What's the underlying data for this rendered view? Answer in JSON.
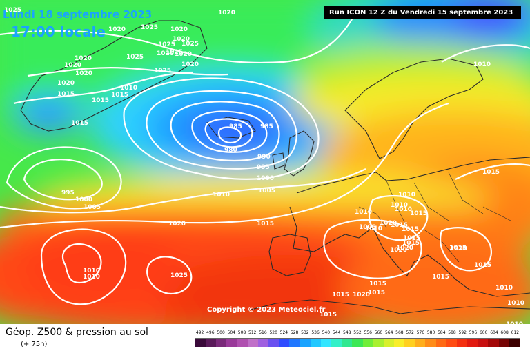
{
  "header": {
    "valid_date": "Lundi 18 septembre 2023",
    "valid_time": "17:00 locale",
    "run_info": "Run ICON 12 Z du Vendredi 15 septembre 2023"
  },
  "footer": {
    "title": "Géop. Z500 & pression au sol",
    "lead": "(+ 75h)",
    "copyright": "Copyright © 2023 Meteociel.fr"
  },
  "scale": {
    "values": [
      "492",
      "496",
      "500",
      "504",
      "508",
      "512",
      "516",
      "520",
      "524",
      "528",
      "532",
      "536",
      "540",
      "544",
      "548",
      "552",
      "556",
      "560",
      "564",
      "568",
      "572",
      "576",
      "580",
      "584",
      "588",
      "592",
      "596",
      "600",
      "604",
      "608",
      "612"
    ],
    "colors": [
      "#3a0a3a",
      "#5a1a5a",
      "#7a2a7a",
      "#9a3a9a",
      "#b050b0",
      "#c070c8",
      "#a060e0",
      "#6a50f0",
      "#2f4cff",
      "#1f77ff",
      "#1aa3ff",
      "#22c8ff",
      "#33e6ff",
      "#33f0c8",
      "#30e890",
      "#3ce855",
      "#70ee3a",
      "#a8f030",
      "#d8f02c",
      "#f8ee2a",
      "#ffd020",
      "#ffae1c",
      "#ff8c18",
      "#ff6a14",
      "#ff4c12",
      "#f43010",
      "#e21a10",
      "#c81010",
      "#a40808",
      "#760404",
      "#3c0000"
    ]
  },
  "map": {
    "pressure_labels": [
      {
        "text": "1025"
      },
      {
        "text": "1020"
      },
      {
        "text": "1020"
      },
      {
        "text": "1025"
      },
      {
        "text": "1020"
      },
      {
        "text": "1025"
      },
      {
        "text": "1020"
      },
      {
        "text": "1025"
      },
      {
        "text": "1020"
      },
      {
        "text": "1025"
      },
      {
        "text": "1020"
      },
      {
        "text": "1020"
      },
      {
        "text": "1025"
      },
      {
        "text": "1020"
      },
      {
        "text": "1020"
      },
      {
        "text": "1025"
      },
      {
        "text": "1020"
      },
      {
        "text": "1020"
      },
      {
        "text": "1015"
      },
      {
        "text": "1010"
      },
      {
        "text": "1015"
      },
      {
        "text": "1015"
      },
      {
        "text": "1015"
      },
      {
        "text": "985"
      },
      {
        "text": "985"
      },
      {
        "text": "980"
      },
      {
        "text": "990"
      },
      {
        "text": "995"
      },
      {
        "text": "1000"
      },
      {
        "text": "1005"
      },
      {
        "text": "995"
      },
      {
        "text": "1000"
      },
      {
        "text": "1005"
      },
      {
        "text": "1010"
      },
      {
        "text": "1010"
      },
      {
        "text": "1005"
      },
      {
        "text": "1020"
      },
      {
        "text": "1015"
      },
      {
        "text": "1020"
      },
      {
        "text": "1010"
      },
      {
        "text": "1010"
      },
      {
        "text": "1010"
      },
      {
        "text": "1010"
      },
      {
        "text": "1015"
      },
      {
        "text": "1015"
      },
      {
        "text": "1015"
      },
      {
        "text": "1015"
      },
      {
        "text": "1020"
      },
      {
        "text": "1015"
      },
      {
        "text": "1020"
      },
      {
        "text": "1020"
      },
      {
        "text": "1015"
      },
      {
        "text": "1015"
      },
      {
        "text": "1010"
      },
      {
        "text": "1015"
      },
      {
        "text": "1010"
      },
      {
        "text": "1025"
      },
      {
        "text": "1015"
      },
      {
        "text": "1020"
      },
      {
        "text": "1015"
      },
      {
        "text": "1015"
      },
      {
        "text": "1010"
      },
      {
        "text": "1010"
      },
      {
        "text": "1010"
      },
      {
        "text": "1010"
      },
      {
        "text": "1015"
      },
      {
        "text": "1015"
      }
    ]
  }
}
